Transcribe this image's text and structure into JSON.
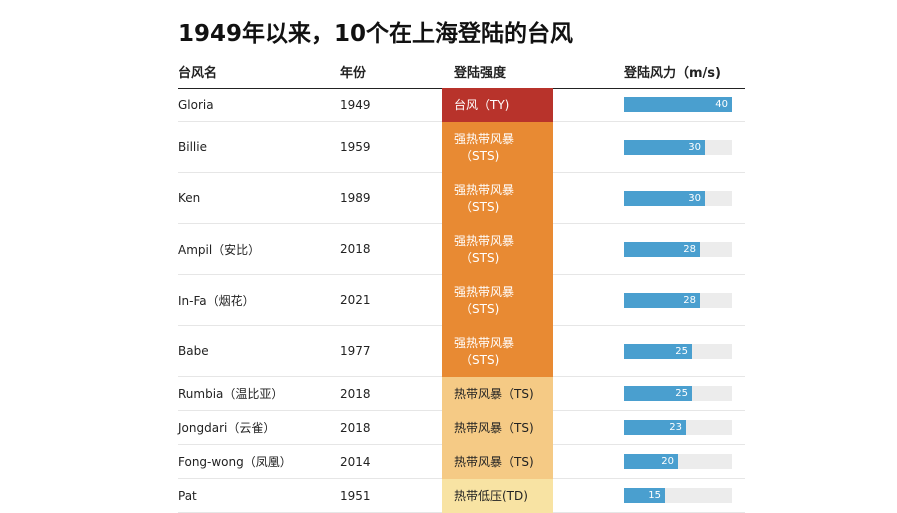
{
  "title": "1949年以来，10个在上海登陆的台风",
  "headers": {
    "name": "台风名",
    "year": "年份",
    "intensity": "登陆强度",
    "wind": "登陆风力（m/s)"
  },
  "colors": {
    "TY": "#b8332b",
    "STS": "#e88a33",
    "TS": "#f5ca85",
    "TD": "#f8e3a3",
    "bar": "#4a9fcf",
    "track": "#ececec"
  },
  "chart_data": {
    "type": "table",
    "xlim": [
      0,
      40
    ],
    "rows": [
      {
        "name": "Gloria",
        "year": "1949",
        "intensity": "台风（TY)",
        "intensity_lines": [
          "台风（TY)"
        ],
        "class": "TY",
        "wind": 40
      },
      {
        "name": "Billie",
        "year": "1959",
        "intensity": "强热带风暴（STS)",
        "intensity_lines": [
          "强热带风暴",
          "（STS)"
        ],
        "class": "STS",
        "wind": 30
      },
      {
        "name": "Ken",
        "year": "1989",
        "intensity": "强热带风暴（STS)",
        "intensity_lines": [
          "强热带风暴",
          "（STS)"
        ],
        "class": "STS",
        "wind": 30
      },
      {
        "name": "Ampil（安比）",
        "year": "2018",
        "intensity": "强热带风暴（STS)",
        "intensity_lines": [
          "强热带风暴",
          "（STS)"
        ],
        "class": "STS",
        "wind": 28
      },
      {
        "name": "In-Fa（烟花）",
        "year": "2021",
        "intensity": "强热带风暴（STS)",
        "intensity_lines": [
          "强热带风暴",
          "（STS)"
        ],
        "class": "STS",
        "wind": 28
      },
      {
        "name": "Babe",
        "year": "1977",
        "intensity": "强热带风暴（STS)",
        "intensity_lines": [
          "强热带风暴",
          "（STS)"
        ],
        "class": "STS",
        "wind": 25
      },
      {
        "name": "Rumbia（温比亚）",
        "year": "2018",
        "intensity": "热带风暴（TS)",
        "intensity_lines": [
          "热带风暴（TS)"
        ],
        "class": "TS",
        "wind": 25
      },
      {
        "name": "Jongdari（云雀）",
        "year": "2018",
        "intensity": "热带风暴（TS)",
        "intensity_lines": [
          "热带风暴（TS)"
        ],
        "class": "TS",
        "wind": 23
      },
      {
        "name": "Fong-wong（凤凰）",
        "year": "2014",
        "intensity": "热带风暴（TS)",
        "intensity_lines": [
          "热带风暴（TS)"
        ],
        "class": "TS",
        "wind": 20
      },
      {
        "name": "Pat",
        "year": "1951",
        "intensity": "热带低压(TD)",
        "intensity_lines": [
          "热带低压(TD)"
        ],
        "class": "TD",
        "wind": 15
      }
    ]
  }
}
